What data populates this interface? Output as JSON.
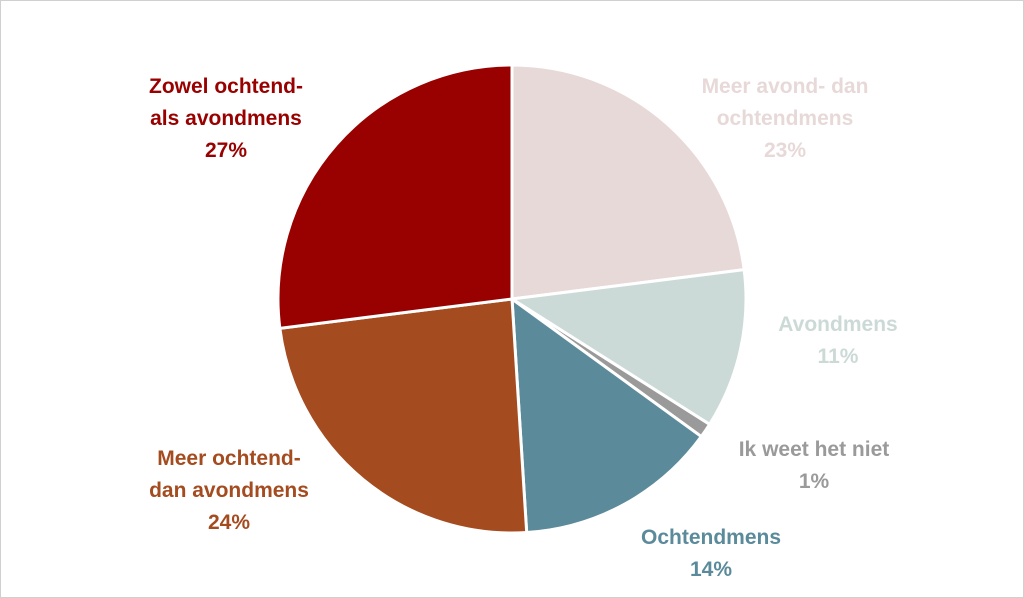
{
  "chart_data": {
    "type": "pie",
    "categories": [
      "Meer avond- dan\nochtendmens",
      "Avondmens",
      "Ik weet het niet",
      "Ochtendmens",
      "Meer ochtend-\ndan avondmens",
      "Zowel ochtend-\nals avondmens"
    ],
    "values": [
      23,
      11,
      1,
      14,
      24,
      27
    ],
    "value_labels": [
      "23%",
      "11%",
      "1%",
      "14%",
      "24%",
      "27%"
    ],
    "colors": [
      "#e8d9d9",
      "#ccdad7",
      "#9a9a9a",
      "#5b8a9b",
      "#a54b20",
      "#990000"
    ]
  }
}
